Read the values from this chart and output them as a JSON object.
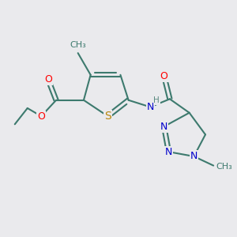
{
  "bg_color": "#EAEAED",
  "atom_colors": {
    "C": "#3D7A6E",
    "N": "#0000CC",
    "O": "#FF0000",
    "S": "#B8860B",
    "H": "#5A8A80"
  },
  "bond_color": "#3D7A6E",
  "font_size": 9,
  "figsize": [
    3.0,
    3.0
  ],
  "dpi": 100
}
